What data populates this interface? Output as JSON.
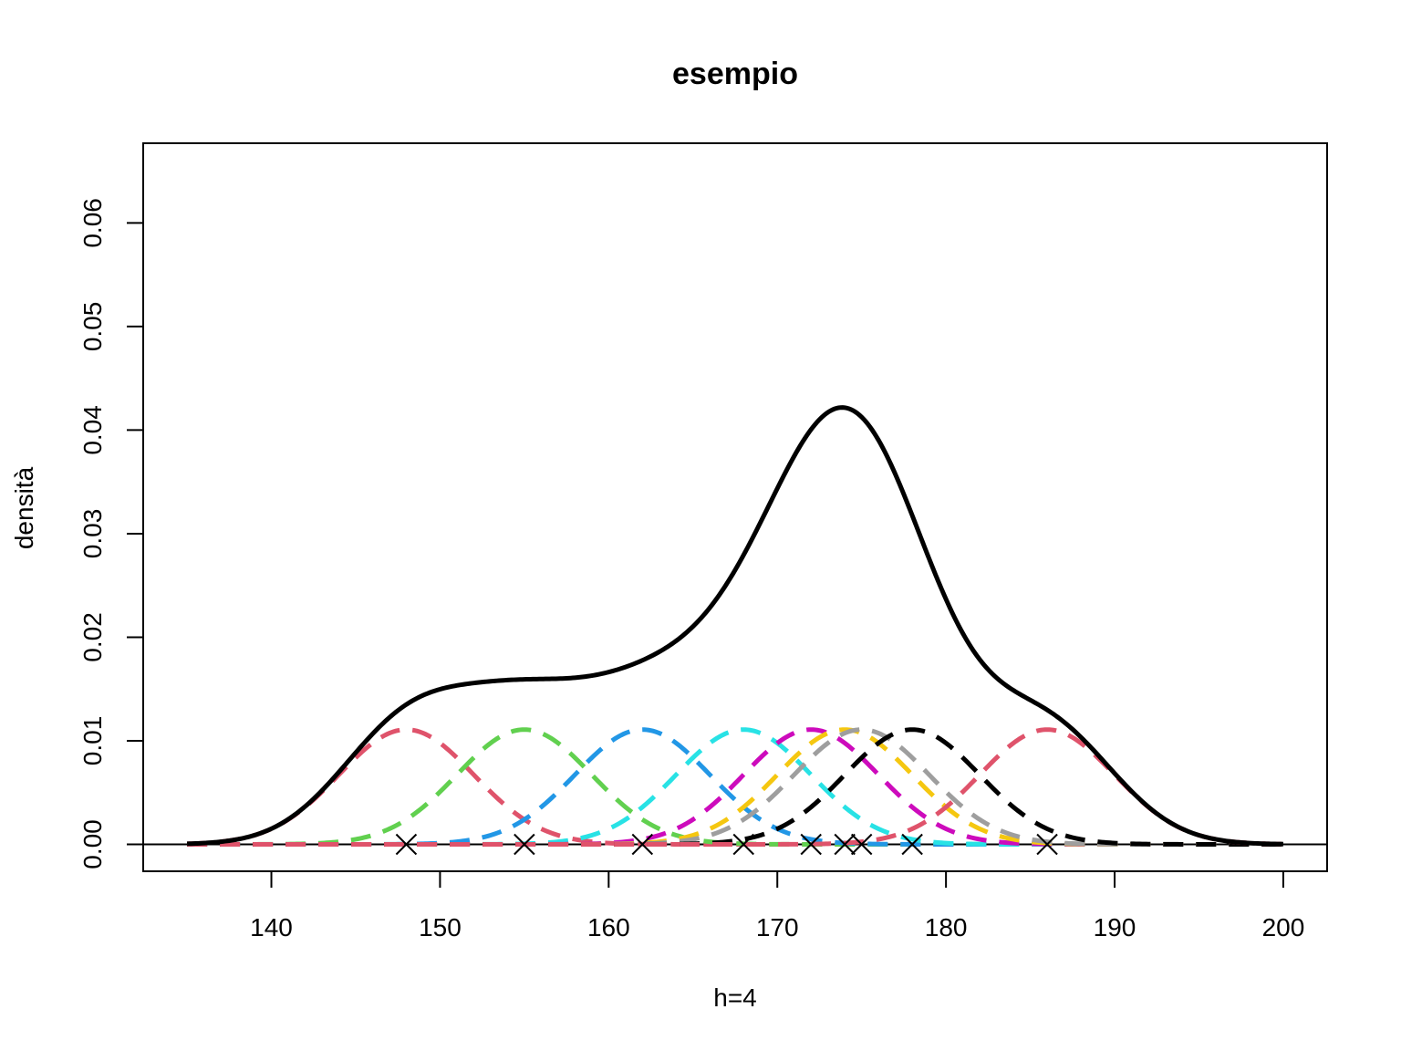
{
  "chart_data": {
    "type": "line",
    "title": "esempio",
    "xlabel": "h=4",
    "ylabel": "densità",
    "xlim": [
      132.4,
      202.6
    ],
    "ylim": [
      -0.0026,
      0.0677
    ],
    "x_ticks": [
      140,
      150,
      160,
      170,
      180,
      190,
      200
    ],
    "y_ticks": [
      0,
      0.01,
      0.02,
      0.03,
      0.04,
      0.05,
      0.06
    ],
    "x_tick_labels": [
      "140",
      "150",
      "160",
      "170",
      "180",
      "190",
      "200"
    ],
    "y_tick_labels": [
      "0.00",
      "0.01",
      "0.02",
      "0.03",
      "0.04",
      "0.05",
      "0.06"
    ],
    "bandwidth": 4,
    "x_range": [
      135,
      200
    ],
    "observations": [
      148,
      155,
      162,
      168,
      172,
      174,
      175,
      178,
      186
    ],
    "kernel_colors": [
      "#DF536B",
      "#61D04F",
      "#2297E6",
      "#28E2E5",
      "#CD0BBC",
      "#F5C710",
      "#9E9E9E",
      "#000000",
      "#DF536B"
    ],
    "density_color": "#000000",
    "grid": false,
    "legend": "none"
  }
}
